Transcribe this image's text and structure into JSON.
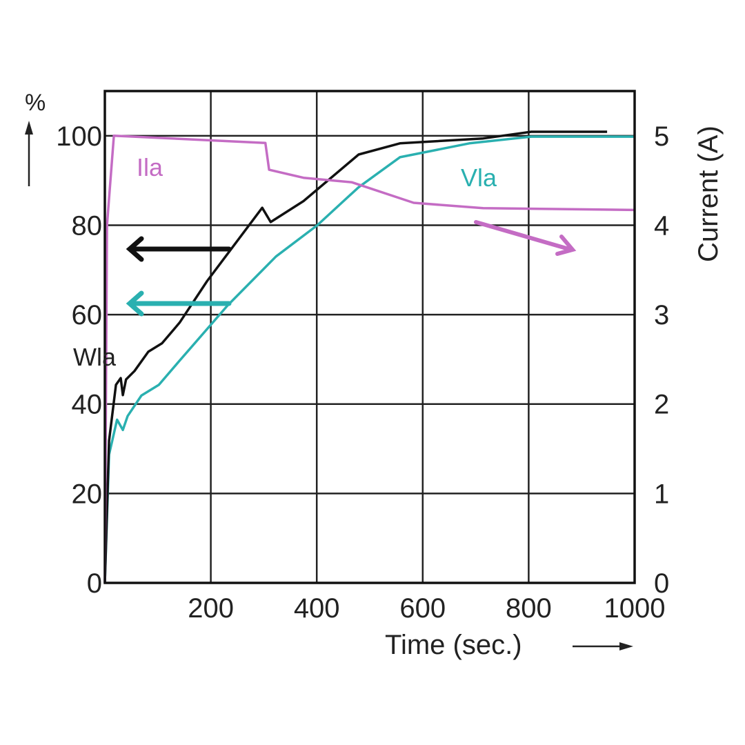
{
  "chart_data": {
    "type": "line",
    "xlabel": "Time (sec.)",
    "ylabel_left": "%",
    "ylabel_right": "Current (A)",
    "xlim": [
      0,
      1000
    ],
    "ylim_left": [
      0,
      110
    ],
    "ylim_right": [
      0,
      5.5
    ],
    "x_ticks": [
      "200",
      "400",
      "600",
      "800",
      "1000"
    ],
    "x_tick_values": [
      200,
      400,
      600,
      800,
      1000
    ],
    "y_left_ticks": [
      "0",
      "20",
      "40",
      "60",
      "80",
      "100"
    ],
    "y_left_tick_values": [
      0,
      20,
      40,
      60,
      80,
      100
    ],
    "y_right_ticks": [
      "0",
      "1",
      "2",
      "3",
      "4",
      "5"
    ],
    "y_right_tick_values": [
      0,
      1,
      2,
      3,
      4,
      5
    ],
    "grid": true,
    "colors": {
      "Wla": "#111111",
      "Vla": "#2ab0b0",
      "Ila": "#c46cc4",
      "grid": "#222222"
    },
    "series": [
      {
        "name": "Wla",
        "label": "Wla",
        "axis": "left",
        "x": [
          0,
          8,
          21,
          30,
          34,
          40,
          56,
          82,
          108,
          141,
          193,
          297,
          313,
          375,
          479,
          557,
          714,
          805,
          948
        ],
        "y": [
          0,
          31.8,
          44.3,
          45.8,
          42,
          45.5,
          47.4,
          51.7,
          53.6,
          58.2,
          67.5,
          83.9,
          80.7,
          85.4,
          95.8,
          98.3,
          99.4,
          100.9,
          100.9
        ]
      },
      {
        "name": "Vla",
        "label": "Vla",
        "axis": "left",
        "x": [
          0,
          8,
          23,
          34,
          43,
          69,
          102,
          141,
          232,
          323,
          401,
          479,
          557,
          688,
          805,
          1000
        ],
        "y": [
          0,
          28.7,
          36.5,
          34.2,
          37.3,
          41.9,
          44.3,
          49.7,
          62.1,
          73,
          80,
          88.5,
          95.2,
          98.3,
          99.8,
          99.8
        ]
      },
      {
        "name": "Ila",
        "label": "Ila",
        "axis": "right",
        "x": [
          0,
          4,
          17,
          303,
          310,
          375,
          466,
          583,
          714,
          1000
        ],
        "y": [
          0,
          4.0,
          5.0,
          4.92,
          4.62,
          4.53,
          4.48,
          4.25,
          4.19,
          4.17
        ]
      }
    ]
  }
}
